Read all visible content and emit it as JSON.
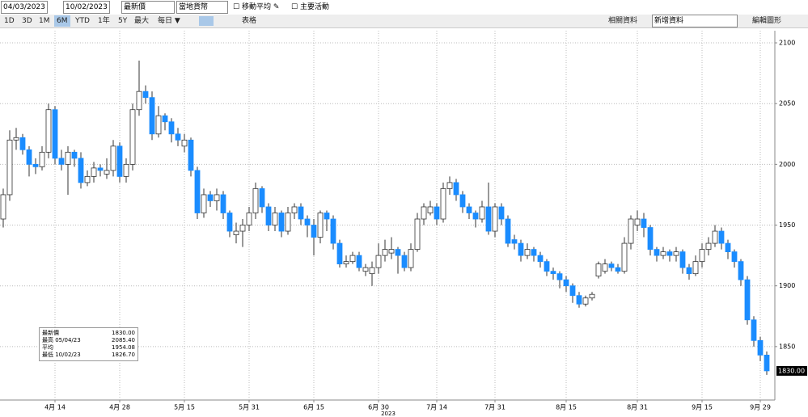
{
  "toolbar": {
    "start_date": "04/03/2023",
    "end_date": "10/02/2023",
    "price_field": "最新價",
    "currency": "當地貨幣",
    "moving_average": "移動平均",
    "events": "主要活動",
    "ranges": [
      "1D",
      "3D",
      "1M",
      "6M",
      "YTD",
      "1年",
      "5Y",
      "最大"
    ],
    "frequency": "每日 ▼",
    "table": "表格",
    "related": "相關資料",
    "add_data": "新增資料",
    "edit_chart": "編輯圖形"
  },
  "chart_data": {
    "type": "candlestick",
    "x_label": "2023",
    "categories": [
      null,
      null,
      null,
      null,
      null,
      null,
      null,
      null,
      "4月 14",
      null,
      null,
      null,
      null,
      null,
      null,
      null,
      null,
      null,
      "4月 28",
      null,
      null,
      null,
      null,
      null,
      null,
      null,
      null,
      null,
      "5月 15",
      null,
      null,
      null,
      null,
      null,
      null,
      null,
      null,
      null,
      "5月 31",
      null,
      null,
      null,
      null,
      null,
      null,
      null,
      null,
      null,
      "6月 15",
      null,
      null,
      null,
      null,
      null,
      null,
      null,
      null,
      null,
      "6月 30",
      null,
      null,
      null,
      null,
      null,
      null,
      null,
      null,
      "7月 14",
      null,
      null,
      null,
      null,
      null,
      null,
      null,
      null,
      "7月 31",
      null,
      null,
      null,
      null,
      null,
      null,
      null,
      null,
      null,
      null,
      "8月 15",
      null,
      null,
      null,
      null,
      null,
      null,
      null,
      null,
      null,
      null,
      "8月 31",
      null,
      null,
      null,
      null,
      null,
      null,
      null,
      null,
      null,
      "9月 15",
      null,
      null,
      null,
      null,
      null,
      null,
      null,
      null,
      "9月 29",
      null
    ],
    "open": [
      1955,
      1975,
      2020,
      2022,
      2012,
      2000,
      1998,
      2010,
      2045,
      2005,
      2000,
      2010,
      2005,
      1985,
      1990,
      1997,
      1992,
      1995,
      2015,
      1990,
      2000,
      2045,
      2060,
      2055,
      2025,
      2040,
      2035,
      2025,
      2015,
      2020,
      1995,
      1960,
      1975,
      1970,
      1975,
      1960,
      1942,
      1945,
      1950,
      1960,
      1980,
      1965,
      1950,
      1960,
      1945,
      1960,
      1965,
      1955,
      1950,
      1940,
      1960,
      1955,
      1935,
      1918,
      1920,
      1925,
      1912,
      1910,
      1915,
      1925,
      1927,
      1930,
      1925,
      1915,
      1930,
      1955,
      1960,
      1965,
      1955,
      1980,
      1985,
      1975,
      1965,
      1960,
      1955,
      1965,
      1945,
      1965,
      1955,
      1938,
      1935,
      1925,
      1930,
      1925,
      1920,
      1912,
      1910,
      1905,
      1900,
      1892,
      1885,
      1890,
      1908,
      1912,
      1918,
      1915,
      1912,
      1935,
      1950,
      1955,
      1948,
      1930,
      1925,
      1928,
      1925,
      1928,
      1915,
      1910,
      1920,
      1930,
      1935,
      1945,
      1935,
      1928,
      1920,
      1905,
      1872,
      1855,
      1843
    ],
    "high": [
      1980,
      2028,
      2030,
      2025,
      2015,
      2005,
      2015,
      2050,
      2048,
      2012,
      2015,
      2012,
      2010,
      1995,
      2002,
      2000,
      2005,
      2020,
      2018,
      2005,
      2050,
      2085.4,
      2065,
      2060,
      2048,
      2042,
      2038,
      2030,
      2025,
      2022,
      1998,
      1980,
      1978,
      1980,
      1978,
      1962,
      1952,
      1955,
      1965,
      1985,
      1982,
      1968,
      1965,
      1962,
      1965,
      1968,
      1968,
      1958,
      1955,
      1962,
      1962,
      1958,
      1938,
      1925,
      1928,
      1928,
      1918,
      1920,
      1935,
      1938,
      1940,
      1932,
      1928,
      1935,
      1960,
      1968,
      1970,
      1968,
      1985,
      1990,
      1988,
      1978,
      1968,
      1962,
      1970,
      1985,
      1968,
      1968,
      1958,
      1942,
      1938,
      1935,
      1932,
      1928,
      1922,
      1915,
      1912,
      1908,
      1902,
      1895,
      1892,
      1895,
      1920,
      1922,
      1920,
      1918,
      1940,
      1958,
      1962,
      1960,
      1950,
      1932,
      1932,
      1930,
      1932,
      1930,
      1918,
      1925,
      1935,
      1940,
      1950,
      1948,
      1938,
      1930,
      1922,
      1908,
      1875,
      1858,
      1846
    ],
    "low": [
      1948,
      1970,
      2012,
      2008,
      1990,
      1992,
      1995,
      2005,
      2000,
      1995,
      1975,
      1998,
      1980,
      1982,
      1985,
      1990,
      1988,
      1990,
      1985,
      1985,
      1995,
      2040,
      2050,
      2020,
      2022,
      2028,
      2018,
      2015,
      2010,
      1990,
      1955,
      1956,
      1965,
      1962,
      1955,
      1940,
      1935,
      1932,
      1945,
      1955,
      1960,
      1945,
      1945,
      1940,
      1942,
      1955,
      1950,
      1940,
      1925,
      1935,
      1945,
      1930,
      1915,
      1915,
      1918,
      1912,
      1908,
      1900,
      1910,
      1920,
      1922,
      1910,
      1912,
      1912,
      1928,
      1950,
      1958,
      1950,
      1952,
      1975,
      1970,
      1960,
      1955,
      1948,
      1952,
      1942,
      1940,
      1950,
      1932,
      1930,
      1920,
      1922,
      1920,
      1915,
      1908,
      1905,
      1898,
      1895,
      1886,
      1882,
      1883,
      1888,
      1906,
      1910,
      1912,
      1910,
      1910,
      1930,
      1945,
      1940,
      1925,
      1920,
      1922,
      1920,
      1920,
      1910,
      1905,
      1908,
      1915,
      1925,
      1932,
      1930,
      1922,
      1915,
      1900,
      1868,
      1850,
      1838,
      1826.7
    ],
    "close": [
      1975,
      2020,
      2022,
      2012,
      2000,
      1998,
      2010,
      2045,
      2005,
      2000,
      2010,
      2005,
      1985,
      1990,
      1997,
      1995,
      1995,
      2015,
      1990,
      2000,
      2045,
      2060,
      2055,
      2025,
      2040,
      2035,
      2025,
      2020,
      2020,
      1995,
      1960,
      1975,
      1970,
      1975,
      1960,
      1945,
      1945,
      1950,
      1960,
      1980,
      1965,
      1950,
      1960,
      1945,
      1960,
      1965,
      1955,
      1950,
      1940,
      1960,
      1955,
      1935,
      1918,
      1920,
      1925,
      1915,
      1915,
      1915,
      1925,
      1930,
      1930,
      1925,
      1915,
      1930,
      1955,
      1965,
      1965,
      1955,
      1980,
      1985,
      1975,
      1965,
      1960,
      1955,
      1965,
      1945,
      1965,
      1955,
      1935,
      1935,
      1925,
      1930,
      1925,
      1920,
      1912,
      1910,
      1905,
      1900,
      1892,
      1885,
      1890,
      1893,
      1918,
      1918,
      1915,
      1912,
      1935,
      1955,
      1955,
      1948,
      1930,
      1925,
      1928,
      1925,
      1928,
      1915,
      1910,
      1920,
      1930,
      1935,
      1945,
      1935,
      1928,
      1920,
      1905,
      1872,
      1855,
      1843,
      1830
    ],
    "up_color": "#ffffff",
    "down_color": "#1a8cff",
    "ylim": [
      1806,
      2110
    ],
    "yticks": [
      1850,
      1900,
      1950,
      2000,
      2050,
      2100
    ],
    "grid": true,
    "last_label": "1830.00",
    "summary": [
      {
        "label": "最新價",
        "value": "1830.00"
      },
      {
        "label": "最高 05/04/23",
        "value": "2085.40"
      },
      {
        "label": "平均",
        "value": "1954.08"
      },
      {
        "label": "最低 10/02/23",
        "value": "1826.70"
      }
    ]
  }
}
